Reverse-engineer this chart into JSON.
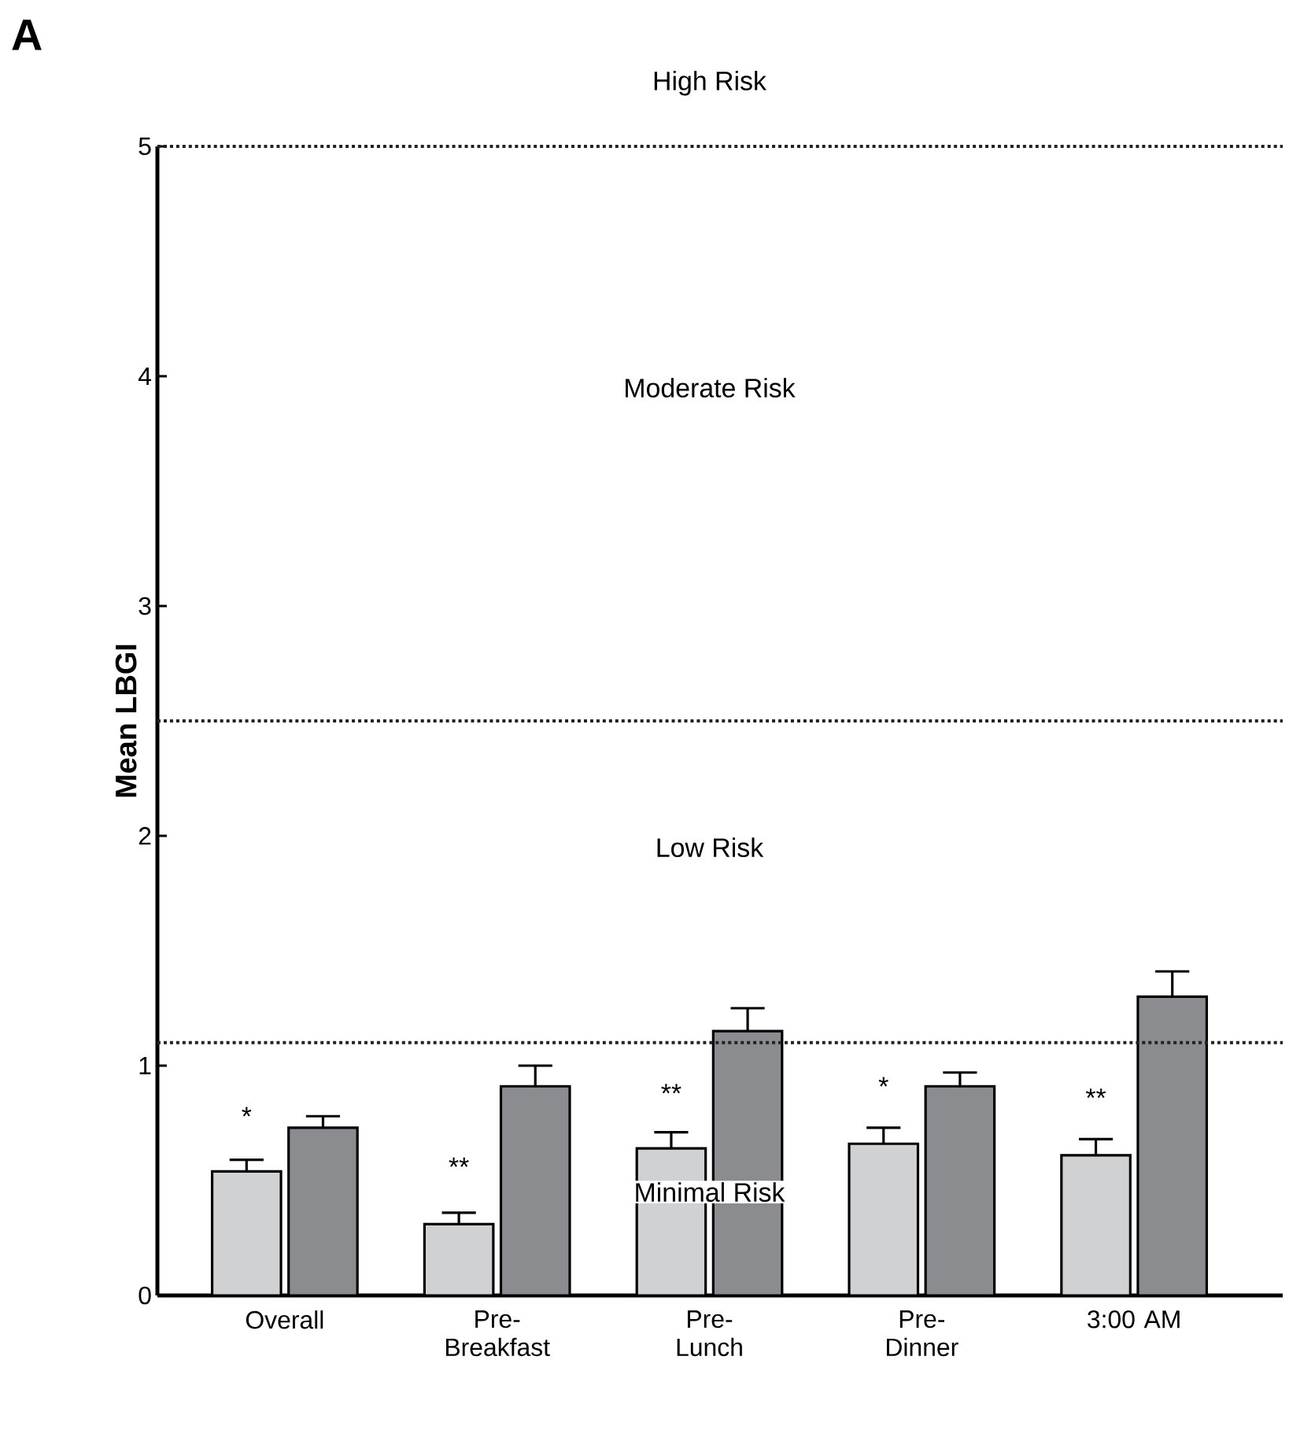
{
  "chart_data": {
    "type": "bar",
    "ylabel": "Mean LBGI",
    "categories": [
      "Overall",
      "Pre-Breakfast",
      "Pre-Lunch",
      "Pre-Dinner",
      "3:00 AM"
    ],
    "series": [
      {
        "color": "#d0d1d3",
        "values": [
          0.54,
          0.31,
          0.64,
          0.66,
          0.61
        ],
        "errors": [
          [
            0.54,
            0.59
          ],
          [
            0.31,
            0.36
          ],
          [
            0.64,
            0.71
          ],
          [
            0.66,
            0.73
          ],
          [
            0.61,
            0.68
          ]
        ]
      },
      {
        "color": "#8b8c90",
        "values": [
          0.73,
          0.91,
          1.15,
          0.91,
          1.3
        ],
        "errors": [
          [
            0.73,
            0.78
          ],
          [
            0.91,
            1.0
          ],
          [
            1.15,
            1.25
          ],
          [
            0.91,
            0.97
          ],
          [
            1.3,
            1.41
          ]
        ]
      }
    ],
    "ylim": [
      0,
      5
    ],
    "yticks": [
      0,
      1,
      2,
      3,
      4,
      5
    ],
    "grid": false,
    "ref_lines": [
      {
        "axis": "y",
        "value": 1.1,
        "line_style": "dotted",
        "color": "#222222"
      },
      {
        "axis": "y",
        "value": 2.5,
        "line_style": "dotted",
        "color": "#222222"
      },
      {
        "axis": "y",
        "value": 5,
        "line_style": "dotted",
        "color": "#222222"
      }
    ],
    "annotations": [
      "A",
      "High Risk",
      "Moderate Risk",
      "Low Risk",
      "Minimal Risk",
      "*",
      "**",
      "**",
      "*",
      "**"
    ]
  }
}
